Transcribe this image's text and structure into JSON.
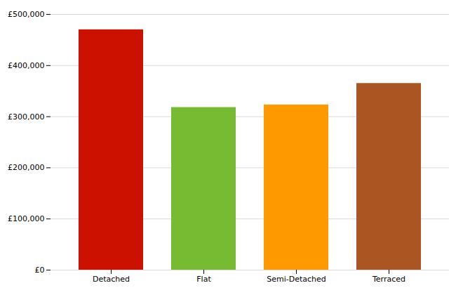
{
  "chart_data": {
    "type": "bar",
    "categories": [
      "Detached",
      "Flat",
      "Semi-Detached",
      "Terraced"
    ],
    "values": [
      470000,
      318000,
      323000,
      365000
    ],
    "colors": [
      "#cc1100",
      "#77bb33",
      "#ff9900",
      "#aa5522"
    ],
    "ylim": [
      0,
      500000
    ],
    "yticks": [
      {
        "value": 0,
        "label": "£0"
      },
      {
        "value": 100000,
        "label": "£100,000"
      },
      {
        "value": 200000,
        "label": "£200,000"
      },
      {
        "value": 300000,
        "label": "£300,000"
      },
      {
        "value": 400000,
        "label": "£400,000"
      },
      {
        "value": 500000,
        "label": "£500,000"
      }
    ],
    "grid": true
  }
}
